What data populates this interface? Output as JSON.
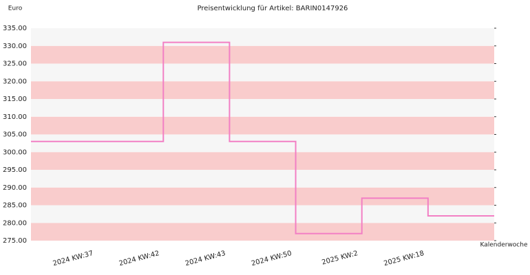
{
  "chart_data": {
    "type": "step",
    "title": "Preisentwicklung für Artikel: BARIN0147926",
    "y_label": "Euro",
    "x_label": "Kalenderwoche",
    "categories": [
      null,
      "2024 KW:37",
      "2024 KW:42",
      "2024 KW:43",
      "2024 KW:50",
      "2025 KW:2",
      "2025 KW:18"
    ],
    "values": [
      303,
      303,
      331,
      303,
      277,
      287,
      282
    ],
    "color": "#f27fc4",
    "band_colors": [
      "#f9cccc",
      "#f6f6f6"
    ],
    "ylim": [
      275,
      335
    ],
    "yticks": [
      {
        "value": 275,
        "label": "275.00"
      },
      {
        "value": 280,
        "label": "280.00"
      },
      {
        "value": 285,
        "label": "285.00"
      },
      {
        "value": 290,
        "label": "290.00"
      },
      {
        "value": 295,
        "label": "295.00"
      },
      {
        "value": 300,
        "label": "300.00"
      },
      {
        "value": 305,
        "label": "305.00"
      },
      {
        "value": 310,
        "label": "310.00"
      },
      {
        "value": 315,
        "label": "315.00"
      },
      {
        "value": 320,
        "label": "320.00"
      },
      {
        "value": 325,
        "label": "325.00"
      },
      {
        "value": 330,
        "label": "330.00"
      },
      {
        "value": 335,
        "label": "335.00"
      }
    ]
  }
}
